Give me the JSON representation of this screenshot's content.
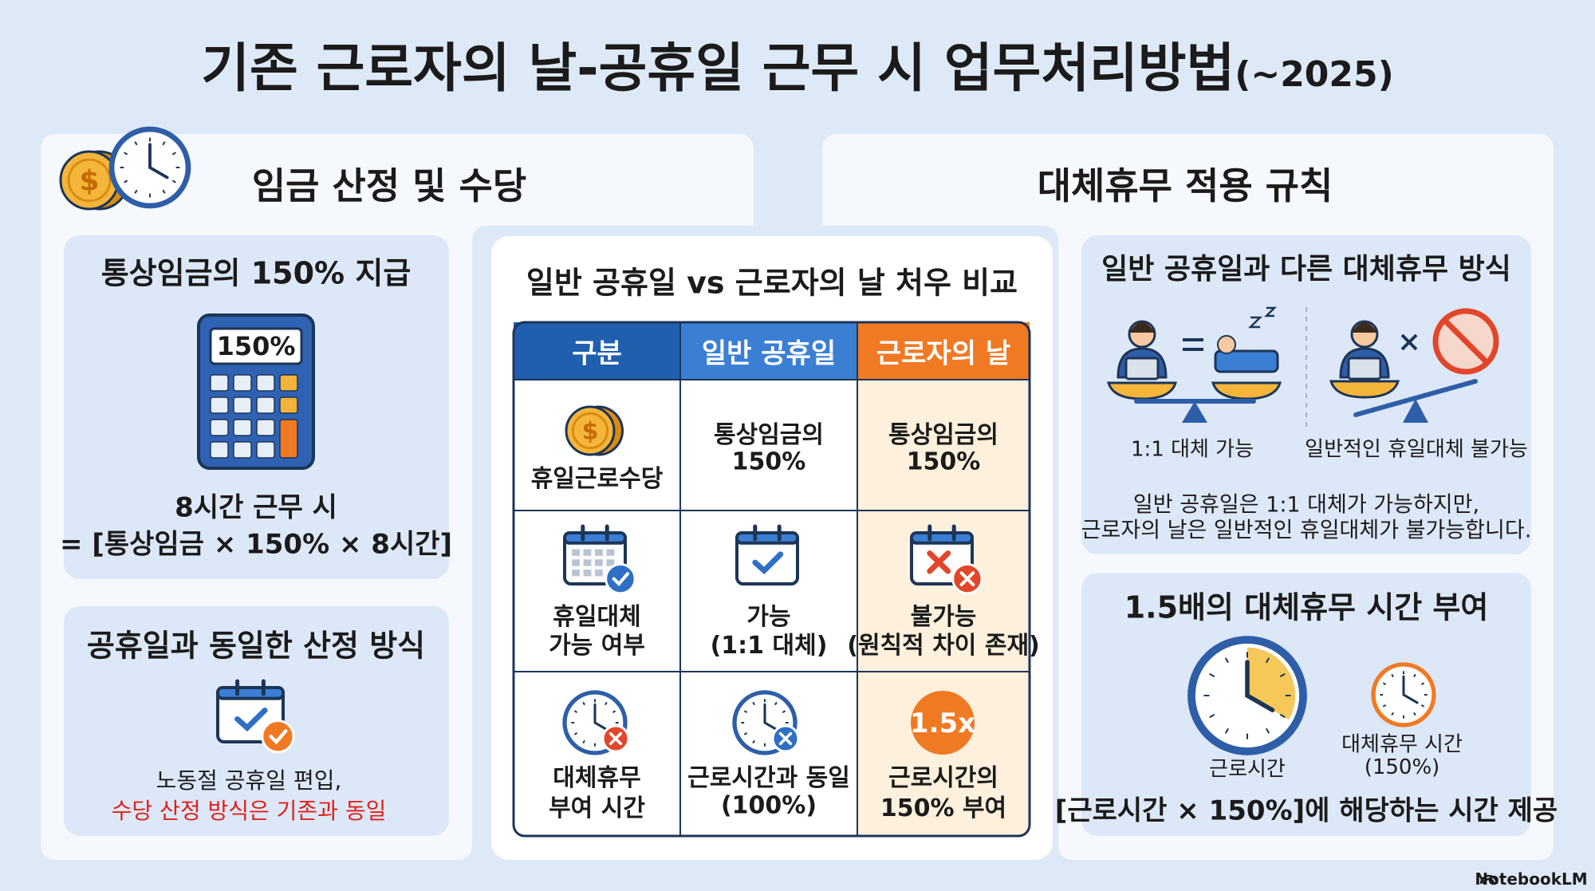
{
  "title": "기존 근로자의 날-공휴일 근무 시 업무처리방법",
  "title_suffix": "(~2025)",
  "currency_symbol": "$",
  "left": {
    "heading": "임금 산정 및 수당",
    "card1": {
      "title": "통상임금의 150% 지급",
      "display": "150%",
      "lines": [
        "8시간 근무 시",
        "= [통상임금 × 150% × 8시간]"
      ]
    },
    "card2": {
      "title": "공휴일과 동일한 산정 방식",
      "lines": [
        "노동절 공휴일 편입,",
        "수당 산정 방식은 기존과 동일"
      ]
    }
  },
  "middle": {
    "title": "일반 공휴일 vs 근로자의 날 처우 비교",
    "header": [
      "구분",
      "일반 공휴일",
      "근로자의 날"
    ],
    "rows": [
      [
        [
          "휴일근로수당"
        ],
        [
          "통상임금의",
          "150%"
        ],
        [
          "통상임금의",
          "150%"
        ]
      ],
      [
        [
          "휴일대체",
          "가능 여부"
        ],
        [
          "가능",
          "(1:1 대체)"
        ],
        [
          "불가능",
          "(원칙적 차이 존재)"
        ]
      ],
      [
        [
          "대체휴무",
          "부여 시간"
        ],
        [
          "근로시간과 동일",
          "(100%)"
        ],
        [
          "근로시간의",
          "150% 부여"
        ]
      ]
    ],
    "badge": "1.5x"
  },
  "right": {
    "heading": "대체휴무 적용 규칙",
    "card1": {
      "title": "일반 공휴일과 다른 대체휴무 방식",
      "captions": [
        "1:1 대체 가능",
        "일반적인 휴일대체 불가능"
      ],
      "note": [
        "일반 공휴일은 1:1 대체가 가능하지만,",
        "근로자의 날은 일반적인 휴일대체가 불가능합니다."
      ]
    },
    "card2": {
      "title": "1.5배의 대체휴무 시간 부여",
      "clock_label": "근로시간",
      "alt_label": [
        "대체휴무 시간",
        "(150%)"
      ],
      "footer": "[근로시간 × 150%]에 해당하는 시간 제공"
    }
  },
  "brand": "NotebookLM"
}
